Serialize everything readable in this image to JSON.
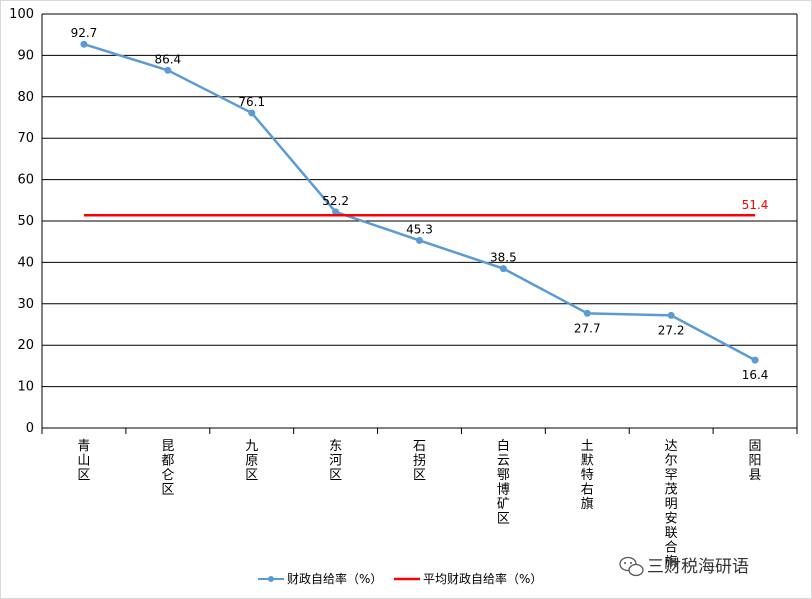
{
  "chart_data": {
    "type": "line",
    "categories": [
      "青山区",
      "昆都仑区",
      "九原区",
      "东河区",
      "石拐区",
      "白云鄂博矿区",
      "土默特右旗",
      "达尔罕茂明安联合旗",
      "固阳县"
    ],
    "series": [
      {
        "name": "财政自给率（%）",
        "values": [
          92.7,
          86.4,
          76.1,
          52.2,
          45.3,
          38.5,
          27.7,
          27.2,
          16.4
        ],
        "color": "#5b9bd5"
      },
      {
        "name": "平均财政自给率（%）",
        "values": [
          51.4,
          51.4,
          51.4,
          51.4,
          51.4,
          51.4,
          51.4,
          51.4,
          51.4
        ],
        "color": "#ff0000"
      }
    ],
    "average_label": "51.4",
    "ylim": [
      0,
      100
    ],
    "yticks": [
      0,
      10,
      20,
      30,
      40,
      50,
      60,
      70,
      80,
      90,
      100
    ],
    "grid": "horizontal",
    "legend": "bottom-center",
    "title": "",
    "xlabel": "",
    "ylabel": ""
  },
  "watermark": {
    "text": "三财税海研语",
    "icon": "wechat-icon"
  }
}
